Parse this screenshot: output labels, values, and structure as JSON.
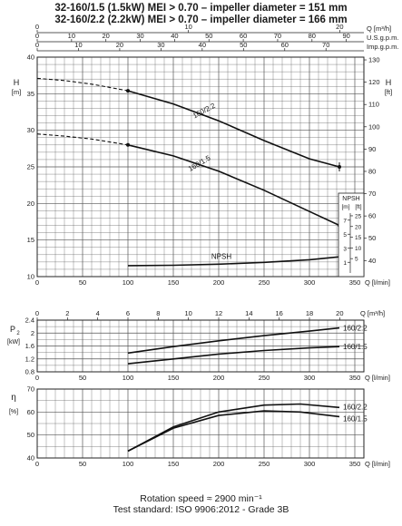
{
  "header": {
    "line1": "32-160/1.5 (1.5kW) MEI > 0.70 – impeller diameter = 151 mm",
    "line2": "32-160/2.2 (2.2kW) MEI > 0.70 – impeller diameter = 166 mm"
  },
  "footer": {
    "line1": "Rotation speed ≈ 2900 min⁻¹",
    "line2": "Test standard: ISO 9906:2012 - Grade 3B"
  },
  "chart_data": [
    {
      "type": "line",
      "panel": "head",
      "top_axes": [
        {
          "label": "Q [m³/h]",
          "ticks": [
            0,
            10,
            20,
            30,
            40,
            50,
            60,
            70,
            80,
            90,
            100
          ]
        },
        {
          "label": "Imp.g.p.m.",
          "ticks": [
            0,
            10,
            20,
            30,
            40,
            50,
            60,
            70,
            80
          ]
        },
        {
          "label": "U.S.g.p.m.",
          "ticks": [
            0,
            10,
            20,
            30,
            40,
            50,
            60,
            70,
            80,
            90,
            100
          ]
        }
      ],
      "xlabel": "Q [l/min]",
      "xlim": [
        0,
        360
      ],
      "xticks": [
        0,
        50,
        100,
        150,
        200,
        250,
        300,
        350
      ],
      "ylabel": "H [m]",
      "ylim": [
        10,
        40
      ],
      "yticks": [
        10,
        15,
        20,
        25,
        30,
        35,
        40
      ],
      "y2label": "H [ft]",
      "y2ticks": [
        40,
        50,
        60,
        70,
        80,
        90,
        100,
        110,
        120,
        130
      ],
      "grid": true,
      "series": [
        {
          "name": "160/2.2",
          "x": [
            0,
            30,
            60,
            100,
            150,
            200,
            250,
            300,
            333
          ],
          "y": [
            37.1,
            36.8,
            36.3,
            35.4,
            33.6,
            31.3,
            28.6,
            26.1,
            25.0
          ],
          "dashed_until": 100
        },
        {
          "name": "160/1.5",
          "x": [
            0,
            30,
            60,
            100,
            150,
            200,
            250,
            300,
            333
          ],
          "y": [
            29.5,
            29.2,
            28.8,
            28.0,
            26.5,
            24.4,
            21.8,
            18.9,
            17.0
          ],
          "dashed_until": 100
        },
        {
          "name": "NPSH",
          "x": [
            100,
            150,
            200,
            250,
            300,
            333
          ],
          "y": [
            11.5,
            11.55,
            11.7,
            11.95,
            12.3,
            12.7
          ]
        }
      ],
      "npsh_axis": {
        "m_label": "[m]",
        "ft_label": "[ft]",
        "title": "NPSH",
        "m_ticks": [
          1,
          3,
          5,
          7
        ],
        "ft_ticks": [
          5,
          10,
          15,
          20,
          25
        ]
      }
    },
    {
      "type": "line",
      "panel": "power",
      "ylabel": "P₂ [kW]",
      "ylim": [
        0.8,
        2.4
      ],
      "yticks": [
        0.8,
        1.2,
        1.6,
        2.0,
        2.4
      ],
      "xlabel": "Q [l/min]",
      "xlim": [
        0,
        360
      ],
      "xticks": [
        0,
        50,
        100,
        150,
        200,
        250,
        300,
        350
      ],
      "top_axis": {
        "label": "Q [m³/h]",
        "ticks": [
          0,
          2,
          4,
          6,
          8,
          10,
          12,
          14,
          16,
          18,
          20
        ]
      },
      "series": [
        {
          "name": "160/2.2",
          "x": [
            100,
            150,
            200,
            250,
            300,
            333
          ],
          "y": [
            1.38,
            1.58,
            1.76,
            1.92,
            2.06,
            2.16
          ]
        },
        {
          "name": "160/1.5",
          "x": [
            100,
            150,
            200,
            250,
            300,
            333
          ],
          "y": [
            1.05,
            1.2,
            1.35,
            1.46,
            1.54,
            1.58
          ]
        }
      ]
    },
    {
      "type": "line",
      "panel": "efficiency",
      "ylabel": "η [%]",
      "ylim": [
        40,
        70
      ],
      "yticks": [
        40,
        50,
        60,
        70
      ],
      "xlabel": "Q [l/min]",
      "xlim": [
        0,
        360
      ],
      "xticks": [
        0,
        50,
        100,
        150,
        200,
        250,
        300,
        350
      ],
      "series": [
        {
          "name": "160/2.2",
          "x": [
            100,
            150,
            200,
            250,
            290,
            333
          ],
          "y": [
            43,
            53.5,
            60,
            63,
            63.5,
            62
          ]
        },
        {
          "name": "160/1.5",
          "x": [
            100,
            150,
            200,
            250,
            290,
            333
          ],
          "y": [
            43,
            53,
            58.5,
            60.5,
            60,
            58
          ]
        }
      ]
    }
  ],
  "colors": {
    "curve": "#111111",
    "grid": "#555555",
    "frame": "#222222"
  }
}
